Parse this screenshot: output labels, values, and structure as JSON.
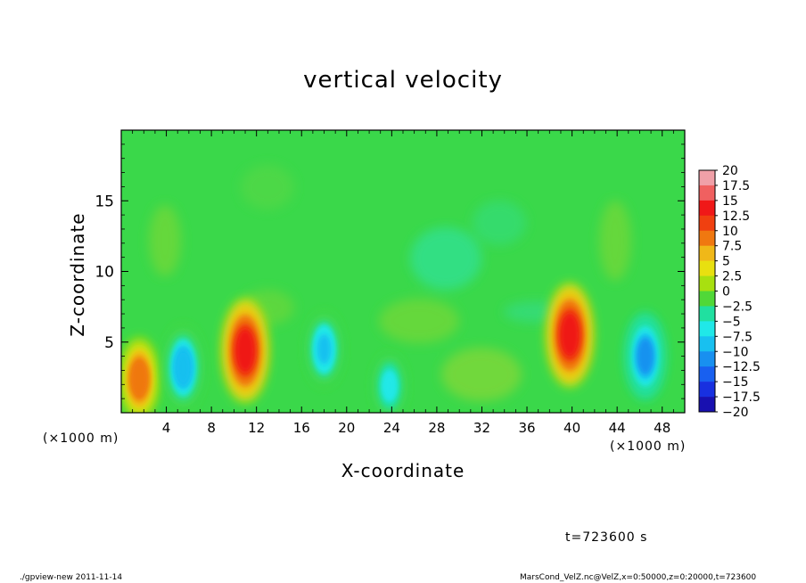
{
  "title": "vertical velocity",
  "footer": {
    "left": "./gpview-new  2011-11-14",
    "right": "MarsCond_VelZ.nc@VelZ,x=0:50000,z=0:20000,t=723600"
  },
  "time_label": "t=723600 s",
  "chart_data": {
    "type": "heatmap",
    "title": "vertical velocity",
    "xlabel": "X-coordinate",
    "ylabel": "Z-coordinate",
    "x_unit_label": "(×1000 m)",
    "x_range": [
      0,
      50
    ],
    "y_range": [
      0,
      20
    ],
    "x_ticks": [
      4,
      8,
      12,
      16,
      20,
      24,
      28,
      32,
      36,
      40,
      44,
      48
    ],
    "y_ticks": [
      5,
      10,
      15
    ],
    "colorbar": {
      "levels": [
        20,
        17.5,
        15,
        12.5,
        10,
        7.5,
        5,
        2.5,
        0,
        -2.5,
        -5,
        -7.5,
        -10,
        -12.5,
        -15,
        -17.5,
        -20
      ],
      "labels": [
        "20",
        "17.5",
        "15",
        "12.5",
        "10",
        "7.5",
        "5",
        "2.5",
        "0",
        "−2.5",
        "−5",
        "−7.5",
        "−10",
        "−12.5",
        "−15",
        "−17.5",
        "−20"
      ],
      "colors": [
        "#f0a0a8",
        "#f06060",
        "#f01818",
        "#f04010",
        "#f07810",
        "#f0b818",
        "#e8e010",
        "#a8e010",
        "#50d838",
        "#20e0a0",
        "#20e8e8",
        "#18c0f0",
        "#1890f0",
        "#1860f0",
        "#1830e0",
        "#1810b0",
        "#7010b8"
      ]
    },
    "features": [
      {
        "name": "updraft",
        "x": 1.6,
        "z": 2.4,
        "peak": 10
      },
      {
        "name": "downdraft",
        "x": 5.5,
        "z": 3.2,
        "peak": -10
      },
      {
        "name": "updraft",
        "x": 11.0,
        "z": 4.4,
        "peak": 14
      },
      {
        "name": "downdraft",
        "x": 18.0,
        "z": 4.5,
        "peak": -8
      },
      {
        "name": "downdraft",
        "x": 23.8,
        "z": 1.9,
        "peak": -6
      },
      {
        "name": "updraft",
        "x": 39.8,
        "z": 5.5,
        "peak": 14
      },
      {
        "name": "downdraft",
        "x": 46.5,
        "z": 4.0,
        "peak": -11
      }
    ]
  }
}
